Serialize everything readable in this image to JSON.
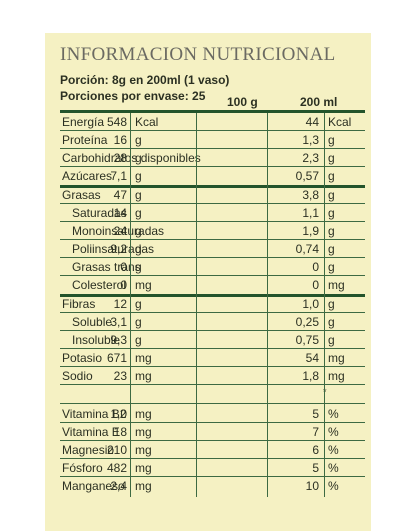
{
  "title": "INFORMACION NUTRICIONAL",
  "portion": "Porción: 8g en 200ml (1 vaso)",
  "servings": "Porciones por envase: 25",
  "col_100": "100 g",
  "col_200": "200 ml",
  "rows": [
    {
      "name": "Energía",
      "v100": "548",
      "u100": "Kcal",
      "v200": "44",
      "u200": "Kcal"
    },
    {
      "name": "Proteína",
      "v100": "16",
      "u100": "g",
      "v200": "1,3",
      "u200": "g"
    },
    {
      "name": "Carbohidratos disponibles",
      "v100": "28",
      "u100": "g",
      "v200": "2,3",
      "u200": "g"
    },
    {
      "name": "Azúcares",
      "v100": "7,1",
      "u100": "g",
      "v200": "0,57",
      "u200": "g"
    },
    {
      "name": "Grasas",
      "v100": "47",
      "u100": "g",
      "v200": "3,8",
      "u200": "g"
    },
    {
      "name": "Saturadas",
      "v100": "14",
      "u100": "g",
      "v200": "1,1",
      "u200": "g"
    },
    {
      "name": "Monoinsaturadas",
      "v100": "24",
      "u100": "g",
      "v200": "1,9",
      "u200": "g"
    },
    {
      "name": "Poliinsaturadas",
      "v100": "9,2",
      "u100": "g",
      "v200": "0,74",
      "u200": "g"
    },
    {
      "name": "Grasas trans",
      "v100": "0",
      "u100": "g",
      "v200": "0",
      "u200": "g"
    },
    {
      "name": "Colesterol",
      "v100": "0",
      "u100": "mg",
      "v200": "0",
      "u200": "mg"
    },
    {
      "name": "Fibras",
      "v100": "12",
      "u100": "g",
      "v200": "1,0",
      "u200": "g"
    },
    {
      "name": "Soluble",
      "v100": "3,1",
      "u100": "g",
      "v200": "0,25",
      "u200": "g"
    },
    {
      "name": "Insoluble",
      "v100": "9,3",
      "u100": "g",
      "v200": "0,75",
      "u200": "g"
    },
    {
      "name": "Potasio",
      "v100": "671",
      "u100": "mg",
      "v200": "54",
      "u200": "mg"
    },
    {
      "name": "Sodio",
      "v100": "23",
      "u100": "mg",
      "v200": "1,8",
      "u200": "mg"
    },
    {
      "name": "",
      "v100": "",
      "u100": "",
      "v200": "",
      "u200": "*"
    },
    {
      "name": "Vitamina B2",
      "v100": "1,0",
      "u100": "mg",
      "v200": "5",
      "u200": "%"
    },
    {
      "name": "Vitamina E",
      "v100": "18",
      "u100": "mg",
      "v200": "7",
      "u200": "%"
    },
    {
      "name": "Magnesio",
      "v100": "210",
      "u100": "mg",
      "v200": "6",
      "u200": "%"
    },
    {
      "name": "Fósforo",
      "v100": "482",
      "u100": "mg",
      "v200": "5",
      "u200": "%"
    },
    {
      "name": "Manganeso",
      "v100": "2,4",
      "u100": "mg",
      "v200": "10",
      "u200": "%"
    }
  ],
  "colors": {
    "panel": "#f5f1c3",
    "rule": "#23542b",
    "text": "#2b3022"
  }
}
